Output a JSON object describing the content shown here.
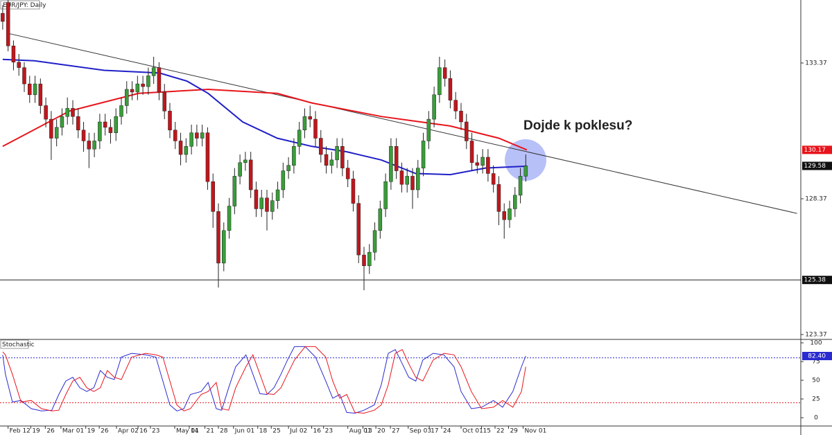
{
  "chart_data": [
    {
      "type": "candlestick",
      "title": "EUR/JPY: Daily",
      "up_color": "#3a9d3a",
      "down_color": "#c0171d",
      "xlim": [
        -0.5,
        148
      ],
      "ylim": [
        123.19,
        135.69
      ],
      "yticks": [
        133.37,
        128.37,
        123.37
      ],
      "candles": [
        [
          135.2,
          135.5,
          134.6,
          134.9
        ],
        [
          135.6,
          135.69,
          133.8,
          134.0
        ],
        [
          134.0,
          134.2,
          133.1,
          133.4
        ],
        [
          133.4,
          133.7,
          132.9,
          133.2
        ],
        [
          133.2,
          133.4,
          132.3,
          132.6
        ],
        [
          132.6,
          132.9,
          131.9,
          132.2
        ],
        [
          132.2,
          132.9,
          131.9,
          132.6
        ],
        [
          132.6,
          132.8,
          131.5,
          131.8
        ],
        [
          131.8,
          132.1,
          131.0,
          131.3
        ],
        [
          131.3,
          131.6,
          129.8,
          130.6
        ],
        [
          130.6,
          131.3,
          130.3,
          131.0
        ],
        [
          131.0,
          131.7,
          130.7,
          131.4
        ],
        [
          131.4,
          132.1,
          131.1,
          131.7
        ],
        [
          131.7,
          132.0,
          131.1,
          131.4
        ],
        [
          131.4,
          131.7,
          130.6,
          130.9
        ],
        [
          130.9,
          131.2,
          130.1,
          130.5
        ],
        [
          130.5,
          130.8,
          129.5,
          130.2
        ],
        [
          130.2,
          130.8,
          129.9,
          130.5
        ],
        [
          130.5,
          131.5,
          130.2,
          131.2
        ],
        [
          131.2,
          131.5,
          130.7,
          131.0
        ],
        [
          131.0,
          131.3,
          130.4,
          130.8
        ],
        [
          130.8,
          131.7,
          130.5,
          131.4
        ],
        [
          131.4,
          132.1,
          131.1,
          131.8
        ],
        [
          131.8,
          132.7,
          131.5,
          132.4
        ],
        [
          132.4,
          132.7,
          132.0,
          132.3
        ],
        [
          132.3,
          132.9,
          132.0,
          132.6
        ],
        [
          132.6,
          132.9,
          132.2,
          132.5
        ],
        [
          132.5,
          133.2,
          132.2,
          132.9
        ],
        [
          132.9,
          133.6,
          132.6,
          133.2
        ],
        [
          133.2,
          133.4,
          132.0,
          132.3
        ],
        [
          132.3,
          132.6,
          131.3,
          131.6
        ],
        [
          131.6,
          131.9,
          130.6,
          130.9
        ],
        [
          130.9,
          131.2,
          130.2,
          130.5
        ],
        [
          130.5,
          130.8,
          129.6,
          130.0
        ],
        [
          130.0,
          130.6,
          129.7,
          130.3
        ],
        [
          130.3,
          131.1,
          130.0,
          130.8
        ],
        [
          130.8,
          131.1,
          130.3,
          130.6
        ],
        [
          130.6,
          131.1,
          130.3,
          130.8
        ],
        [
          130.8,
          131.0,
          128.7,
          129.0
        ],
        [
          129.0,
          129.3,
          127.3,
          127.9
        ],
        [
          127.9,
          128.2,
          125.1,
          126.0
        ],
        [
          126.0,
          127.5,
          125.7,
          127.2
        ],
        [
          127.2,
          128.4,
          126.9,
          128.1
        ],
        [
          128.1,
          129.5,
          127.8,
          129.2
        ],
        [
          129.2,
          130.0,
          128.9,
          129.7
        ],
        [
          129.7,
          130.1,
          129.4,
          129.8
        ],
        [
          129.8,
          130.1,
          128.4,
          128.7
        ],
        [
          128.7,
          129.0,
          127.7,
          128.0
        ],
        [
          128.0,
          128.7,
          127.7,
          128.4
        ],
        [
          128.4,
          128.7,
          127.2,
          127.9
        ],
        [
          127.9,
          128.6,
          127.6,
          128.3
        ],
        [
          128.3,
          129.0,
          128.0,
          128.7
        ],
        [
          128.7,
          129.7,
          128.4,
          129.4
        ],
        [
          129.4,
          129.9,
          129.1,
          129.6
        ],
        [
          129.6,
          130.6,
          129.3,
          130.3
        ],
        [
          130.3,
          131.2,
          130.0,
          130.9
        ],
        [
          130.9,
          131.7,
          130.6,
          131.4
        ],
        [
          131.4,
          131.8,
          131.0,
          131.3
        ],
        [
          131.3,
          131.6,
          130.3,
          130.6
        ],
        [
          130.6,
          130.9,
          129.7,
          130.0
        ],
        [
          130.0,
          130.3,
          129.3,
          129.6
        ],
        [
          129.6,
          130.1,
          129.3,
          129.8
        ],
        [
          129.8,
          130.6,
          129.5,
          130.3
        ],
        [
          130.3,
          130.6,
          129.2,
          129.5
        ],
        [
          129.5,
          129.8,
          128.8,
          129.1
        ],
        [
          129.1,
          129.4,
          127.9,
          128.2
        ],
        [
          128.2,
          128.5,
          126.0,
          126.3
        ],
        [
          126.3,
          126.6,
          125.0,
          125.9
        ],
        [
          125.9,
          126.7,
          125.6,
          126.4
        ],
        [
          126.4,
          127.5,
          126.1,
          127.2
        ],
        [
          127.2,
          128.3,
          126.9,
          128.0
        ],
        [
          128.0,
          129.3,
          127.7,
          129.0
        ],
        [
          129.0,
          130.6,
          128.7,
          130.3
        ],
        [
          130.3,
          130.6,
          129.1,
          129.4
        ],
        [
          129.4,
          129.7,
          128.6,
          128.9
        ],
        [
          128.9,
          129.5,
          128.6,
          129.2
        ],
        [
          129.2,
          129.5,
          128.0,
          128.7
        ],
        [
          128.7,
          129.8,
          128.4,
          129.5
        ],
        [
          129.5,
          130.8,
          129.2,
          130.5
        ],
        [
          130.5,
          131.6,
          130.2,
          131.3
        ],
        [
          131.3,
          132.5,
          131.0,
          132.2
        ],
        [
          132.2,
          133.6,
          131.9,
          133.2
        ],
        [
          133.2,
          133.5,
          132.5,
          132.8
        ],
        [
          132.8,
          133.1,
          131.7,
          132.0
        ],
        [
          132.0,
          132.3,
          131.3,
          131.6
        ],
        [
          131.6,
          131.9,
          130.9,
          131.2
        ],
        [
          131.2,
          131.5,
          130.2,
          130.5
        ],
        [
          130.5,
          130.8,
          129.4,
          129.7
        ],
        [
          129.7,
          130.0,
          129.3,
          129.6
        ],
        [
          129.6,
          130.2,
          129.3,
          129.9
        ],
        [
          129.9,
          130.2,
          129.0,
          129.3
        ],
        [
          129.3,
          129.6,
          128.6,
          128.9
        ],
        [
          128.9,
          129.2,
          127.4,
          127.9
        ],
        [
          127.9,
          128.2,
          126.9,
          127.6
        ],
        [
          127.6,
          128.3,
          127.3,
          128.0
        ],
        [
          128.0,
          128.8,
          127.7,
          128.5
        ],
        [
          128.5,
          129.5,
          128.2,
          129.2
        ],
        [
          129.2,
          130.0,
          129.0,
          129.58
        ]
      ],
      "series": [
        {
          "color": "#e8141b",
          "x": [
            0,
            12.4,
            25.2,
            38.1,
            50.9,
            57.3,
            70.2,
            83.0,
            92.0,
            97.2
          ],
          "values": [
            130.3,
            131.6,
            132.25,
            132.4,
            132.25,
            131.9,
            131.4,
            131.05,
            130.6,
            130.17
          ]
        },
        {
          "color": "#1f1fc8",
          "x": [
            0,
            5.9,
            18.8,
            29.1,
            34.2,
            38.1,
            44.5,
            50.9,
            57.3,
            63.8,
            70.2,
            76.6,
            83.0,
            89.5,
            97.2
          ],
          "values": [
            133.5,
            133.45,
            133.1,
            133.0,
            132.7,
            132.25,
            131.2,
            130.6,
            130.3,
            130.1,
            129.8,
            129.3,
            129.26,
            129.5,
            129.57
          ]
        }
      ],
      "trendline": {
        "color": "#333333",
        "x": [
          0.8,
          147.3
        ],
        "values": [
          134.47,
          127.83
        ]
      },
      "hline": 125.38,
      "markers": [
        {
          "value": 130.17,
          "color": "#e8141b"
        },
        {
          "value": 129.58,
          "color": "#111111"
        },
        {
          "value": 125.38,
          "color": "#111111"
        }
      ],
      "annotation": "Dojde k poklesu?"
    },
    {
      "type": "line",
      "title": "Stochastic",
      "xlim": [
        -0.5,
        148
      ],
      "ylim": [
        -11.1,
        104.6
      ],
      "yticks": [
        100,
        75,
        50,
        25,
        0
      ],
      "levels": [
        {
          "value": 80,
          "color": "#2a2ad0"
        },
        {
          "value": 20,
          "color": "#e8141b"
        }
      ],
      "xticks": [
        {
          "value": 1,
          "label": "Feb 12"
        },
        {
          "value": 5.2,
          "label": "19"
        },
        {
          "value": 7.9,
          "label": "26"
        },
        {
          "value": 10.8,
          "label": "Mar 01"
        },
        {
          "value": 15.4,
          "label": "19"
        },
        {
          "value": 17.9,
          "label": "26"
        },
        {
          "value": 21.1,
          "label": "Apr 02"
        },
        {
          "value": 25.1,
          "label": "16"
        },
        {
          "value": 27.4,
          "label": "23"
        },
        {
          "value": 31.9,
          "label": "May 01"
        },
        {
          "value": 34.6,
          "label": "14"
        },
        {
          "value": 37.5,
          "label": "21"
        },
        {
          "value": 40,
          "label": "28"
        },
        {
          "value": 42.8,
          "label": "Jun 01"
        },
        {
          "value": 47.3,
          "label": "18"
        },
        {
          "value": 49.8,
          "label": "25"
        },
        {
          "value": 53,
          "label": "Jul 02"
        },
        {
          "value": 57.3,
          "label": "16"
        },
        {
          "value": 59.5,
          "label": "23"
        },
        {
          "value": 64,
          "label": "Aug 01"
        },
        {
          "value": 66.8,
          "label": "13"
        },
        {
          "value": 69.2,
          "label": "20"
        },
        {
          "value": 71.9,
          "label": "27"
        },
        {
          "value": 75.2,
          "label": "Sep 03"
        },
        {
          "value": 79.1,
          "label": "17"
        },
        {
          "value": 81.4,
          "label": "24"
        },
        {
          "value": 85,
          "label": "Oct 01"
        },
        {
          "value": 88.8,
          "label": "15"
        },
        {
          "value": 91.3,
          "label": "22"
        },
        {
          "value": 93.8,
          "label": "29"
        },
        {
          "value": 96.5,
          "label": "Nov 01"
        }
      ],
      "x": [
        0,
        0.5,
        1.8,
        3.4,
        5.3,
        7.2,
        9.1,
        10.4,
        11.7,
        13.0,
        14.3,
        15.6,
        16.9,
        18.1,
        19.4,
        20.7,
        22.0,
        23.9,
        26.5,
        28.4,
        29.7,
        31.0,
        32.3,
        33.6,
        34.8,
        36.8,
        38.1,
        39.6,
        40.6,
        41.9,
        43.2,
        45.1,
        46.4,
        47.7,
        49.0,
        50.3,
        51.6,
        52.8,
        54.1,
        56.1,
        58.0,
        59.9,
        61.2,
        62.5,
        63.8,
        65.3,
        67.0,
        68.9,
        70.2,
        71.5,
        72.8,
        74.1,
        75.3,
        76.6,
        77.9,
        79.8,
        81.8,
        83.7,
        85.0,
        86.9,
        88.8,
        91.0,
        92.7,
        94.6,
        96.2,
        97
      ],
      "series": [
        {
          "color": "#2a2ad0",
          "values": [
            84,
            58,
            21,
            23,
            12,
            9,
            10,
            31,
            49,
            54,
            40,
            35,
            40,
            63,
            54,
            51,
            81,
            86,
            84,
            81,
            49,
            17,
            9,
            12,
            31,
            35,
            47,
            12,
            10,
            40,
            68,
            84,
            58,
            32,
            31,
            40,
            58,
            77,
            95,
            95,
            81,
            49,
            26,
            31,
            7,
            6,
            10,
            17,
            44,
            86,
            91,
            72,
            54,
            49,
            77,
            86,
            84,
            68,
            35,
            12,
            14,
            23,
            14,
            35,
            68,
            82.4
          ]
        },
        {
          "color": "#e8141b",
          "values": [
            88,
            84,
            58,
            21,
            23,
            12,
            9,
            10,
            31,
            49,
            54,
            40,
            35,
            40,
            63,
            54,
            51,
            81,
            86,
            84,
            81,
            49,
            17,
            9,
            12,
            31,
            35,
            47,
            12,
            10,
            40,
            68,
            84,
            58,
            32,
            31,
            40,
            58,
            77,
            95,
            95,
            81,
            49,
            26,
            31,
            7,
            6,
            10,
            17,
            44,
            86,
            91,
            72,
            54,
            49,
            77,
            86,
            84,
            68,
            35,
            12,
            14,
            23,
            14,
            35,
            68
          ]
        }
      ],
      "last_label": {
        "value": 82.4,
        "label": "82.40",
        "color": "#2a2ad0"
      }
    }
  ]
}
